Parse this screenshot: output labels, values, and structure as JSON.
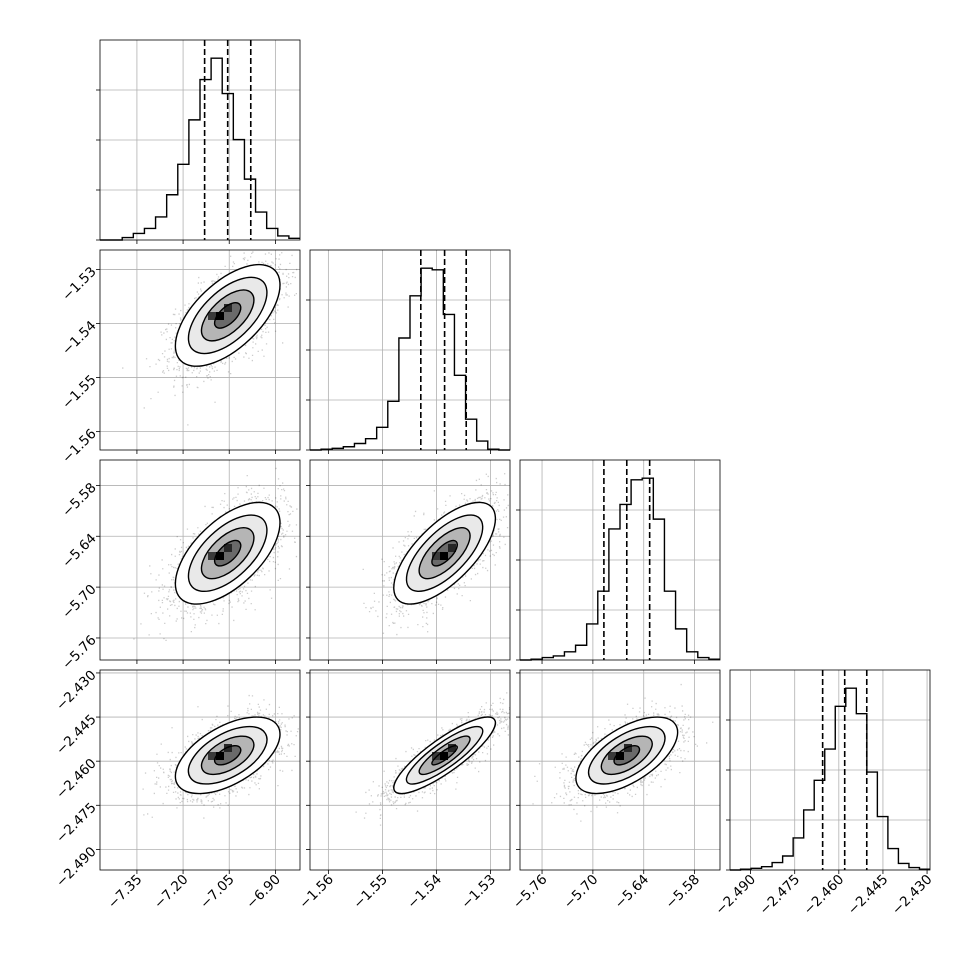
{
  "chart_data": {
    "type": "corner",
    "title": "",
    "grid": true,
    "params": [
      {
        "ticks": [
          -7.35,
          -7.2,
          -7.05,
          -6.9
        ],
        "tick_labels": [
          "−7.35",
          "−7.20",
          "−7.05",
          "−6.90"
        ],
        "range": [
          -7.47,
          -6.82
        ],
        "mean": -7.055,
        "sd": 0.085,
        "quantiles": [
          -7.13,
          -7.055,
          -6.98
        ]
      },
      {
        "ticks": [
          -1.56,
          -1.55,
          -1.54,
          -1.53
        ],
        "tick_labels": [
          "−1.56",
          "−1.55",
          "−1.54",
          "−1.53"
        ],
        "range": [
          -1.5634,
          -1.5264
        ],
        "mean": -1.5385,
        "sd": 0.0047,
        "quantiles": [
          -1.5429,
          -1.5385,
          -1.5345
        ]
      },
      {
        "ticks": [
          -5.76,
          -5.7,
          -5.64,
          -5.58
        ],
        "tick_labels": [
          "−5.76",
          "−5.70",
          "−5.64",
          "−5.58"
        ],
        "range": [
          -5.786,
          -5.55
        ],
        "mean": -5.66,
        "sd": 0.03,
        "quantiles": [
          -5.687,
          -5.66,
          -5.633
        ]
      },
      {
        "ticks": [
          -2.49,
          -2.475,
          -2.46,
          -2.445,
          -2.43
        ],
        "tick_labels": [
          "−2.490",
          "−2.475",
          "−2.460",
          "−2.445",
          "−2.430"
        ],
        "range": [
          -2.497,
          -2.429
        ],
        "mean": -2.458,
        "sd": 0.0065,
        "quantiles": [
          -2.4655,
          -2.458,
          -2.4505
        ]
      }
    ],
    "histograms": [
      {
        "param": 0,
        "counts": [
          0,
          0,
          3,
          8,
          14,
          28,
          55,
          92,
          146,
          195,
          221,
          178,
          122,
          74,
          34,
          14,
          5,
          2
        ]
      },
      {
        "param": 1,
        "counts": [
          0,
          1,
          2,
          4,
          8,
          14,
          28,
          60,
          138,
          190,
          224,
          222,
          167,
          92,
          38,
          11,
          1,
          0
        ]
      },
      {
        "param": 2,
        "counts": [
          0,
          1,
          3,
          5,
          10,
          18,
          44,
          84,
          160,
          190,
          220,
          222,
          172,
          84,
          38,
          10,
          3,
          1
        ]
      },
      {
        "param": 3,
        "counts": [
          0,
          1,
          2,
          4,
          9,
          17,
          39,
          73,
          109,
          147,
          199,
          221,
          190,
          119,
          65,
          26,
          8,
          3,
          1
        ]
      }
    ],
    "correlations": {
      "1-0": 0.6,
      "2-0": 0.6,
      "2-1": 0.68,
      "3-0": 0.55,
      "3-1": 0.85,
      "3-2": 0.6
    }
  }
}
